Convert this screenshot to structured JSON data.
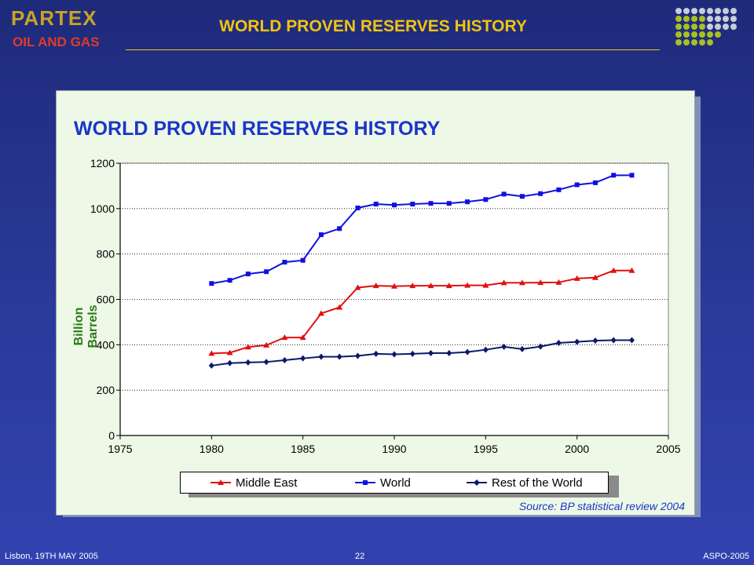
{
  "header": {
    "logo_main": "PARTEX",
    "logo_sub": "OIL AND GAS",
    "title": "WORLD PROVEN RESERVES HISTORY"
  },
  "footer": {
    "left": "Lisbon, 19TH MAY 2005",
    "center": "22",
    "right": "ASPO-2005"
  },
  "colors": {
    "title_yellow": "#f2c40f",
    "middle_east": "#e01010",
    "world": "#1010e0",
    "rest": "#0a1a6a"
  },
  "chart_data": {
    "type": "line",
    "title": "WORLD PROVEN RESERVES HISTORY",
    "xlabel": "",
    "ylabel": "Billion Barrels",
    "xlim": [
      1975,
      2005
    ],
    "ylim": [
      0,
      1200
    ],
    "x_ticks": [
      1975,
      1980,
      1985,
      1990,
      1995,
      2000,
      2005
    ],
    "y_ticks": [
      0,
      200,
      400,
      600,
      800,
      1000,
      1200
    ],
    "grid": "horizontal dotted",
    "legend_position": "bottom",
    "x": [
      1980,
      1981,
      1982,
      1983,
      1984,
      1985,
      1986,
      1987,
      1988,
      1989,
      1990,
      1991,
      1992,
      1993,
      1994,
      1995,
      1996,
      1997,
      1998,
      1999,
      2000,
      2001,
      2002,
      2003
    ],
    "series": [
      {
        "name": "Middle East",
        "marker": "triangle",
        "values": [
          362,
          365,
          390,
          398,
          432,
          432,
          538,
          565,
          652,
          660,
          658,
          660,
          660,
          660,
          662,
          662,
          673,
          673,
          674,
          675,
          692,
          696,
          727,
          727
        ]
      },
      {
        "name": "World",
        "marker": "square",
        "values": [
          670,
          684,
          712,
          722,
          764,
          772,
          885,
          912,
          1003,
          1020,
          1016,
          1020,
          1023,
          1023,
          1030,
          1040,
          1064,
          1054,
          1066,
          1083,
          1105,
          1114,
          1147,
          1147
        ]
      },
      {
        "name": "Rest of the World",
        "marker": "diamond",
        "values": [
          308,
          319,
          322,
          324,
          332,
          340,
          347,
          347,
          351,
          360,
          358,
          360,
          363,
          363,
          368,
          378,
          391,
          381,
          392,
          408,
          413,
          418,
          420,
          420
        ]
      }
    ],
    "source": "Source: BP statistical review 2004"
  }
}
